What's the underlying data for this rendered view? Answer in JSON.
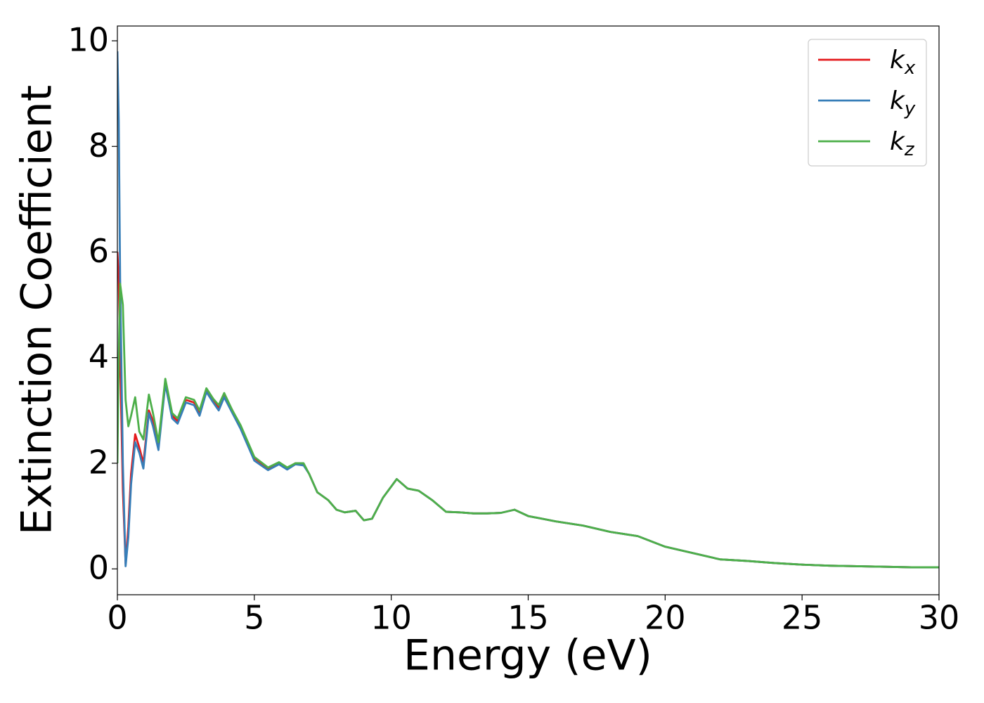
{
  "chart_data": {
    "type": "line",
    "xlabel": "Energy (eV)",
    "ylabel": "Extinction Coefficient",
    "x": [
      0,
      0.05,
      0.1,
      0.2,
      0.3,
      0.4,
      0.5,
      0.65,
      0.8,
      0.95,
      1.15,
      1.3,
      1.5,
      1.75,
      2.0,
      2.2,
      2.5,
      2.8,
      3.0,
      3.25,
      3.5,
      3.7,
      3.9,
      4.2,
      4.5,
      5.0,
      5.5,
      5.9,
      6.2,
      6.5,
      6.8,
      7.0,
      7.3,
      7.7,
      8.0,
      8.3,
      8.7,
      9.0,
      9.3,
      9.7,
      10.2,
      10.6,
      11.0,
      11.5,
      12.0,
      12.5,
      13.0,
      13.5,
      14.0,
      14.5,
      15.0,
      16.0,
      17.0,
      18.0,
      19.0,
      20.0,
      21.0,
      22.0,
      23.0,
      24.0,
      25.0,
      26.0,
      27.0,
      28.0,
      29.0,
      30.0
    ],
    "series": [
      {
        "name": "kx",
        "color": "#e41a1c",
        "values": [
          6.0,
          5.5,
          4.0,
          1.5,
          0.1,
          0.8,
          1.8,
          2.55,
          2.3,
          2.0,
          3.0,
          2.8,
          2.3,
          3.55,
          2.9,
          2.8,
          3.2,
          3.15,
          2.95,
          3.4,
          3.2,
          3.05,
          3.3,
          3.0,
          2.7,
          2.1,
          1.9,
          2.0,
          1.9,
          2.0,
          1.98,
          1.8,
          1.45,
          1.3,
          1.12,
          1.07,
          1.1,
          0.92,
          0.95,
          1.35,
          1.7,
          1.52,
          1.48,
          1.3,
          1.08,
          1.07,
          1.05,
          1.05,
          1.06,
          1.12,
          1.0,
          0.9,
          0.82,
          0.7,
          0.62,
          0.42,
          0.3,
          0.18,
          0.15,
          0.11,
          0.08,
          0.06,
          0.05,
          0.04,
          0.03,
          0.03
        ]
      },
      {
        "name": "ky",
        "color": "#377eb8",
        "values": [
          9.8,
          8.5,
          5.5,
          2.0,
          0.05,
          0.6,
          1.6,
          2.4,
          2.2,
          1.9,
          2.95,
          2.7,
          2.25,
          3.5,
          2.85,
          2.75,
          3.15,
          3.1,
          2.9,
          3.35,
          3.15,
          3.0,
          3.25,
          2.95,
          2.65,
          2.05,
          1.87,
          1.98,
          1.88,
          1.98,
          1.96,
          1.8,
          1.45,
          1.3,
          1.12,
          1.07,
          1.1,
          0.92,
          0.95,
          1.35,
          1.7,
          1.52,
          1.48,
          1.3,
          1.08,
          1.07,
          1.05,
          1.05,
          1.06,
          1.12,
          1.0,
          0.9,
          0.82,
          0.7,
          0.62,
          0.42,
          0.3,
          0.18,
          0.15,
          0.11,
          0.08,
          0.06,
          0.05,
          0.04,
          0.03,
          0.03
        ]
      },
      {
        "name": "kz",
        "color": "#4daf4a",
        "values": [
          2.0,
          4.0,
          5.4,
          5.0,
          3.2,
          2.7,
          2.9,
          3.25,
          2.6,
          2.45,
          3.3,
          2.95,
          2.4,
          3.6,
          2.95,
          2.85,
          3.25,
          3.2,
          3.0,
          3.42,
          3.22,
          3.1,
          3.33,
          3.0,
          2.72,
          2.12,
          1.92,
          2.02,
          1.92,
          2.0,
          2.0,
          1.8,
          1.45,
          1.3,
          1.12,
          1.07,
          1.1,
          0.92,
          0.95,
          1.35,
          1.7,
          1.52,
          1.48,
          1.3,
          1.08,
          1.07,
          1.05,
          1.05,
          1.06,
          1.12,
          1.0,
          0.9,
          0.82,
          0.7,
          0.62,
          0.42,
          0.3,
          0.18,
          0.15,
          0.11,
          0.08,
          0.06,
          0.05,
          0.04,
          0.03,
          0.03
        ]
      }
    ],
    "xlim": [
      0,
      30
    ],
    "ylim": [
      -0.49,
      10.28
    ],
    "xticks": [
      0,
      5,
      10,
      15,
      20,
      25,
      30
    ],
    "yticks": [
      0,
      2,
      4,
      6,
      8,
      10
    ],
    "legend": "upper right"
  }
}
